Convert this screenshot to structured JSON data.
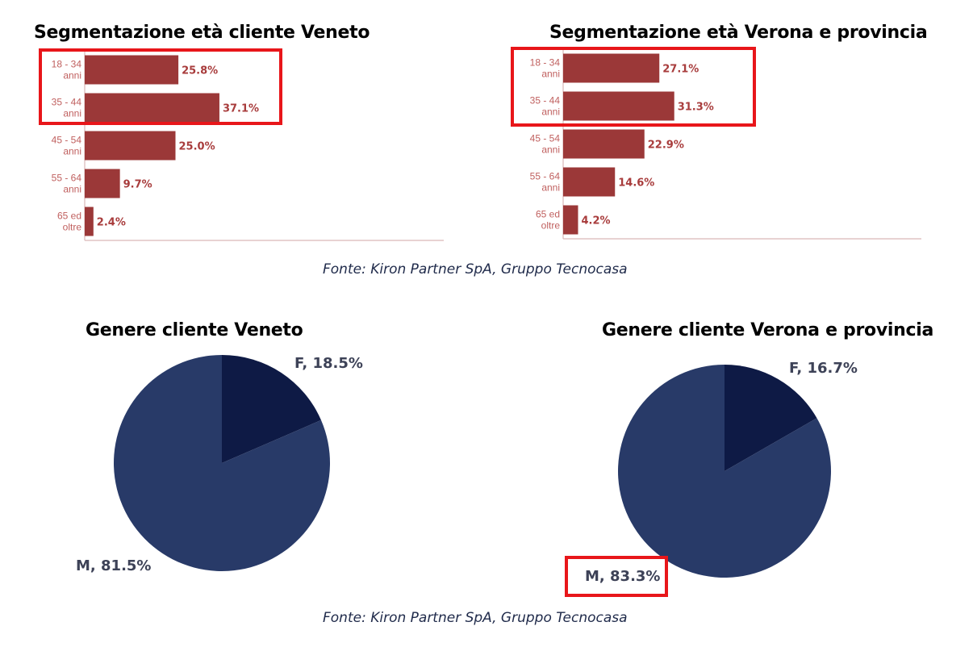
{
  "chart_data": [
    {
      "type": "bar",
      "title": "Segmentazione età cliente Veneto",
      "categories": [
        [
          "18 - 34",
          "anni"
        ],
        [
          "35 - 44",
          "anni"
        ],
        [
          "45 - 54",
          "anni"
        ],
        [
          "55 - 64",
          "anni"
        ],
        [
          "65 ed",
          "oltre"
        ]
      ],
      "values": [
        25.8,
        37.1,
        25.0,
        9.7,
        2.4
      ],
      "value_labels": [
        "25.8%",
        "37.1%",
        "25.0%",
        "9.7%",
        "2.4%"
      ],
      "highlighted_categories": [
        "18 - 34 anni",
        "35 - 44 anni"
      ],
      "orientation": "horizontal",
      "color": "#9b3838"
    },
    {
      "type": "bar",
      "title": "Segmentazione età Verona e provincia",
      "categories": [
        [
          "18 - 34",
          "anni"
        ],
        [
          "35 - 44",
          "anni"
        ],
        [
          "45 - 54",
          "anni"
        ],
        [
          "55 - 64",
          "anni"
        ],
        [
          "65 ed",
          "oltre"
        ]
      ],
      "values": [
        27.1,
        31.3,
        22.9,
        14.6,
        4.2
      ],
      "value_labels": [
        "27.1%",
        "31.3%",
        "22.9%",
        "14.6%",
        "4.2%"
      ],
      "highlighted_categories": [
        "18 - 34 anni",
        "35 - 44 anni"
      ],
      "orientation": "horizontal",
      "color": "#9b3838"
    },
    {
      "type": "pie",
      "title": "Genere cliente Veneto",
      "slices": [
        {
          "label": "F",
          "value": 18.5,
          "text": "F, 18.5%",
          "color": "#0e1a45"
        },
        {
          "label": "M",
          "value": 81.5,
          "text": "M, 81.5%",
          "color": "#283a68"
        }
      ]
    },
    {
      "type": "pie",
      "title": "Genere cliente Verona e provincia",
      "slices": [
        {
          "label": "F",
          "value": 16.7,
          "text": "F, 16.7%",
          "color": "#0e1a45"
        },
        {
          "label": "M",
          "value": 83.3,
          "text": "M, 83.3%",
          "color": "#283a68"
        }
      ],
      "highlighted_slice": "M"
    }
  ],
  "sources": {
    "top": "Fonte: Kiron Partner SpA, Gruppo Tecnocasa",
    "bottom": "Fonte: Kiron Partner SpA, Gruppo Tecnocasa"
  },
  "colors": {
    "bar": "#9b3838",
    "axis": "#d9b8b8",
    "highlight_box": "#e8161a",
    "pie_f": "#0e1a45",
    "pie_m": "#283a68"
  }
}
